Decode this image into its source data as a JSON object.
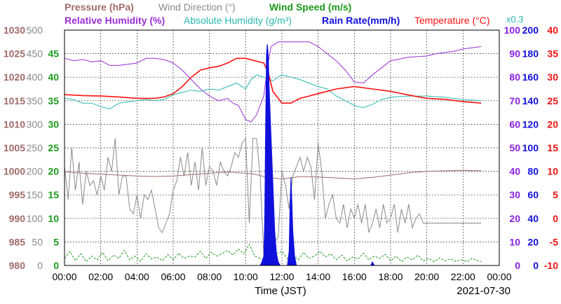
{
  "chart_data": {
    "type": "line",
    "date": "2021-07-30",
    "xlabel": "Time (JST)",
    "x_ticks": [
      "00:00",
      "02:00",
      "04:00",
      "06:00",
      "08:00",
      "10:00",
      "12:00",
      "14:00",
      "16:00",
      "18:00",
      "20:00",
      "22:00",
      "00:00"
    ],
    "legend": [
      {
        "label": "Pressure (hPa)",
        "color": "#a06a6a"
      },
      {
        "label": "Wind Direction (°)",
        "color": "#8a8a8a"
      },
      {
        "label": "Wind Speed (m/s)",
        "color": "#1a9a1a"
      },
      {
        "label": "Relative Humidity (%)",
        "color": "#9b2fd6"
      },
      {
        "label": "Absolute Humidity (g/m³)",
        "color": "#2ab8b0"
      },
      {
        "label": "Rain Rate(mm/h)",
        "color": "#1010dd"
      },
      {
        "label": "Temperature (°C)",
        "color": "#ff1010"
      }
    ],
    "scale_note": "x0.3",
    "axes": {
      "pressure": {
        "ticks": [
          "1030",
          "1025",
          "1020",
          "1015",
          "1010",
          "1005",
          "1000",
          "995",
          "990",
          "985",
          "980"
        ],
        "range": [
          980,
          1030
        ],
        "color": "#a06a6a"
      },
      "wind_direction": {
        "ticks": [
          "500",
          "450",
          "400",
          "350",
          "300",
          "250",
          "200",
          "150",
          "100",
          "50",
          "0"
        ],
        "range": [
          0,
          500
        ],
        "color": "#8a8a8a"
      },
      "wind_speed": {
        "ticks": [
          "45",
          "40",
          "35",
          "30",
          "25",
          "20",
          "15",
          "10",
          "5",
          "0"
        ],
        "range": [
          0,
          50
        ],
        "color": "#1a9a1a"
      },
      "relative_humidity": {
        "ticks": [
          "100",
          "90",
          "80",
          "70",
          "60",
          "50",
          "40",
          "30",
          "20",
          "10",
          "0"
        ],
        "range": [
          0,
          100
        ],
        "color": "#8a20e0"
      },
      "rain_rate": {
        "ticks": [
          "200",
          "180",
          "160",
          "140",
          "120",
          "100",
          "80",
          "60",
          "40",
          "20",
          "0"
        ],
        "range": [
          0,
          200
        ],
        "color": "#1010dd"
      },
      "temperature": {
        "ticks": [
          "40",
          "35",
          "30",
          "25",
          "20",
          "15",
          "10",
          "5",
          "0",
          "-5",
          "-10"
        ],
        "range": [
          -10,
          40
        ],
        "color": "#ee1010"
      }
    },
    "series": [
      {
        "name": "Temperature (°C)",
        "axis": "temperature",
        "color": "#ff1010",
        "x": [
          0,
          1,
          2,
          3,
          4,
          5,
          5.5,
          6,
          6.5,
          7,
          7.5,
          8,
          8.5,
          9,
          9.5,
          10,
          10.5,
          11,
          11.25,
          11.5,
          12,
          12.5,
          13,
          13.5,
          14,
          15,
          16,
          17,
          18,
          19,
          20,
          21,
          22,
          23
        ],
        "y": [
          26.3,
          26.1,
          26,
          25.8,
          25.5,
          25.5,
          25.8,
          26.5,
          28,
          30,
          31.5,
          32,
          32.3,
          33,
          34,
          34,
          33.5,
          33,
          31,
          27,
          24.5,
          24.5,
          25.5,
          26,
          26.5,
          27.5,
          28,
          27.5,
          27,
          26.2,
          25.5,
          25.3,
          24.8,
          24.5
        ]
      },
      {
        "name": "Absolute Humidity (g/m³)",
        "axis": "rain_rate",
        "color": "#2ab8b0",
        "x": [
          0,
          0.5,
          1,
          1.5,
          2,
          2.5,
          3,
          3.5,
          4,
          4.5,
          5,
          5.5,
          6,
          6.5,
          7,
          7.5,
          8,
          8.5,
          9,
          9.5,
          10,
          10.3,
          10.6,
          11,
          11.5,
          12,
          12.5,
          13,
          13.5,
          14,
          14.5,
          15,
          15.5,
          16,
          16.5,
          17,
          17.5,
          18,
          19,
          20,
          21,
          22,
          23
        ],
        "y": [
          142,
          141,
          138,
          138,
          135,
          133,
          138,
          139,
          140,
          141,
          140,
          141,
          145,
          147,
          149,
          148,
          150,
          149,
          152,
          155,
          150,
          158,
          162,
          160,
          157,
          162,
          160,
          158,
          155,
          152,
          150,
          144,
          140,
          136,
          134,
          137,
          141,
          143,
          144,
          144,
          143,
          141,
          140
        ]
      },
      {
        "name": "Relative Humidity (%)",
        "axis": "relative_humidity",
        "color": "#9b2fd6",
        "x": [
          0,
          0.5,
          1,
          1.5,
          2,
          2.5,
          3,
          3.5,
          4,
          4.5,
          5,
          5.5,
          6,
          6.5,
          7,
          7.5,
          8,
          8.5,
          9,
          9.3,
          9.6,
          10,
          10.3,
          10.6,
          11,
          11.2,
          11.4,
          11.8,
          12.2,
          12.8,
          13.5,
          14,
          14.5,
          15,
          15.5,
          16,
          16.5,
          17,
          17.5,
          18,
          19,
          20,
          20.5,
          21,
          21.5,
          22,
          23
        ],
        "y": [
          88,
          87,
          87.5,
          86.5,
          87,
          85,
          85,
          85.5,
          86,
          88,
          88,
          87.5,
          86,
          83,
          79,
          75,
          72,
          70,
          71,
          69,
          68,
          62,
          61,
          64,
          72,
          84,
          93,
          95,
          95,
          95,
          95,
          93,
          90,
          87,
          83,
          78,
          77.5,
          81,
          84,
          87,
          88.5,
          89,
          90,
          90.5,
          91,
          92,
          93
        ]
      },
      {
        "name": "Pressure (hPa)",
        "axis": "pressure",
        "color": "#a06a6a",
        "x": [
          0,
          1,
          2,
          3,
          4,
          5,
          6,
          7,
          8,
          9,
          10,
          10.5,
          11,
          11.5,
          12,
          12.5,
          13,
          14,
          15,
          16,
          17,
          18,
          19,
          20,
          21,
          22,
          23
        ],
        "y": [
          999.9,
          999.6,
          999.4,
          999.2,
          999,
          998.9,
          999,
          999.3,
          999.6,
          999.8,
          999.6,
          999.4,
          998.9,
          998.6,
          998.4,
          998.6,
          998.9,
          998.8,
          998.6,
          998.4,
          998.7,
          999.2,
          999.7,
          1000,
          1000.1,
          1000.2,
          1000.1
        ]
      },
      {
        "name": "Rain Rate(mm/h)",
        "axis": "rain_rate",
        "color": "#1010dd",
        "x": [
          0,
          10.8,
          10.9,
          11,
          11.05,
          11.1,
          11.15,
          11.2,
          11.25,
          11.3,
          11.4,
          11.5,
          11.6,
          11.7,
          11.8,
          11.9,
          12,
          12.3,
          12.4,
          12.45,
          12.5,
          12.55,
          12.6,
          12.7,
          12.8,
          16.9,
          17,
          17.1,
          24
        ],
        "y": [
          0,
          0,
          3,
          8,
          40,
          120,
          180,
          188,
          178,
          150,
          110,
          70,
          30,
          10,
          3,
          0,
          0,
          0,
          12,
          50,
          75,
          55,
          30,
          8,
          0,
          0,
          3,
          0,
          0
        ]
      },
      {
        "name": "Wind Direction (°)",
        "axis": "wind_direction",
        "color": "#8a8a8a",
        "x": [
          0,
          0.2,
          0.4,
          0.6,
          0.8,
          1,
          1.2,
          1.4,
          1.6,
          1.8,
          2,
          2.2,
          2.4,
          2.6,
          2.8,
          3,
          3.2,
          3.4,
          3.6,
          3.8,
          4,
          4.2,
          4.4,
          4.6,
          4.8,
          5,
          5.2,
          5.4,
          5.6,
          5.8,
          6,
          6.2,
          6.4,
          6.6,
          6.8,
          7,
          7.2,
          7.4,
          7.6,
          7.8,
          8,
          8.2,
          8.4,
          8.6,
          8.8,
          9,
          9.2,
          9.4,
          9.6,
          9.8,
          10,
          10.2,
          10.4,
          10.6,
          10.8,
          11,
          11.2,
          11.4,
          11.6,
          11.8,
          12,
          12.2,
          12.4,
          12.6,
          12.8,
          13,
          13.2,
          13.4,
          13.6,
          13.8,
          14,
          14.2,
          14.4,
          14.6,
          14.8,
          15,
          15.2,
          15.4,
          15.6,
          15.8,
          16,
          16.2,
          16.4,
          16.6,
          16.8,
          17,
          17.2,
          17.4,
          17.6,
          17.8,
          18,
          18.2,
          18.4,
          18.6,
          18.8,
          19,
          19.2,
          19.4,
          19.6,
          19.8,
          20,
          20.5,
          21,
          21.5,
          22,
          22.5,
          23
        ],
        "y": [
          210,
          140,
          250,
          160,
          220,
          130,
          200,
          170,
          180,
          150,
          190,
          160,
          230,
          200,
          270,
          150,
          190,
          190,
          120,
          110,
          150,
          100,
          150,
          140,
          160,
          120,
          80,
          70,
          90,
          110,
          160,
          180,
          230,
          190,
          240,
          170,
          220,
          160,
          250,
          170,
          210,
          200,
          170,
          220,
          200,
          190,
          210,
          240,
          230,
          260,
          270,
          90,
          270,
          270,
          190,
          20,
          20,
          40,
          50,
          60,
          200,
          170,
          120,
          190,
          210,
          230,
          200,
          230,
          210,
          140,
          260,
          200,
          100,
          130,
          150,
          100,
          90,
          130,
          80,
          120,
          100,
          130,
          90,
          130,
          70,
          90,
          120,
          80,
          130,
          90,
          100,
          130,
          70,
          120,
          90,
          130,
          80,
          100,
          110,
          90,
          90,
          90,
          90,
          90,
          90,
          90,
          90
        ]
      },
      {
        "name": "Wind Speed (m/s)",
        "axis": "wind_speed",
        "color": "#1a9a1a",
        "x": [
          0,
          0.3,
          0.6,
          0.9,
          1.2,
          1.5,
          1.8,
          2.1,
          2.4,
          2.7,
          3,
          3.3,
          3.6,
          3.9,
          4.2,
          4.5,
          4.8,
          5.1,
          5.4,
          5.7,
          6,
          6.3,
          6.6,
          6.9,
          7.2,
          7.5,
          7.8,
          8.1,
          8.4,
          8.7,
          9,
          9.3,
          9.6,
          9.9,
          10.2,
          10.5,
          10.8,
          11.1,
          11.4,
          11.7,
          12,
          12.3,
          12.6,
          12.9,
          13.2,
          13.5,
          13.8,
          14.1,
          14.4,
          14.7,
          15,
          15.3,
          15.6,
          15.9,
          16.2,
          16.5,
          16.8,
          17.1,
          17.4,
          17.7,
          18,
          18.3,
          18.6,
          18.9,
          19.2,
          19.5,
          19.8,
          20.1,
          20.4,
          20.7,
          21,
          21.3,
          21.6,
          21.9,
          22.2,
          22.5,
          22.8,
          23
        ],
        "y": [
          1.5,
          3,
          1,
          2.5,
          0.8,
          2,
          1.2,
          2.8,
          1,
          2.2,
          1.5,
          3.2,
          1.2,
          2,
          0.9,
          2.5,
          1.4,
          1.8,
          1,
          2.3,
          1.2,
          2.6,
          1.5,
          2,
          1.8,
          3,
          1.5,
          2.8,
          2,
          2.5,
          3.2,
          2.2,
          3.5,
          2.5,
          4.5,
          2,
          1.5,
          1,
          1.8,
          2.5,
          3,
          1.5,
          2.2,
          1.2,
          2.8,
          1.5,
          2,
          3,
          1.8,
          2.5,
          1.2,
          2.2,
          1,
          1.8,
          1.4,
          2.6,
          1.2,
          2,
          1.5,
          2.4,
          1,
          2,
          0.8,
          1.8,
          1.2,
          2.2,
          1,
          1.5,
          0.8,
          1.6,
          1,
          1.4,
          0.9,
          1.2,
          0.8,
          1.5,
          1,
          0.8
        ]
      }
    ]
  }
}
